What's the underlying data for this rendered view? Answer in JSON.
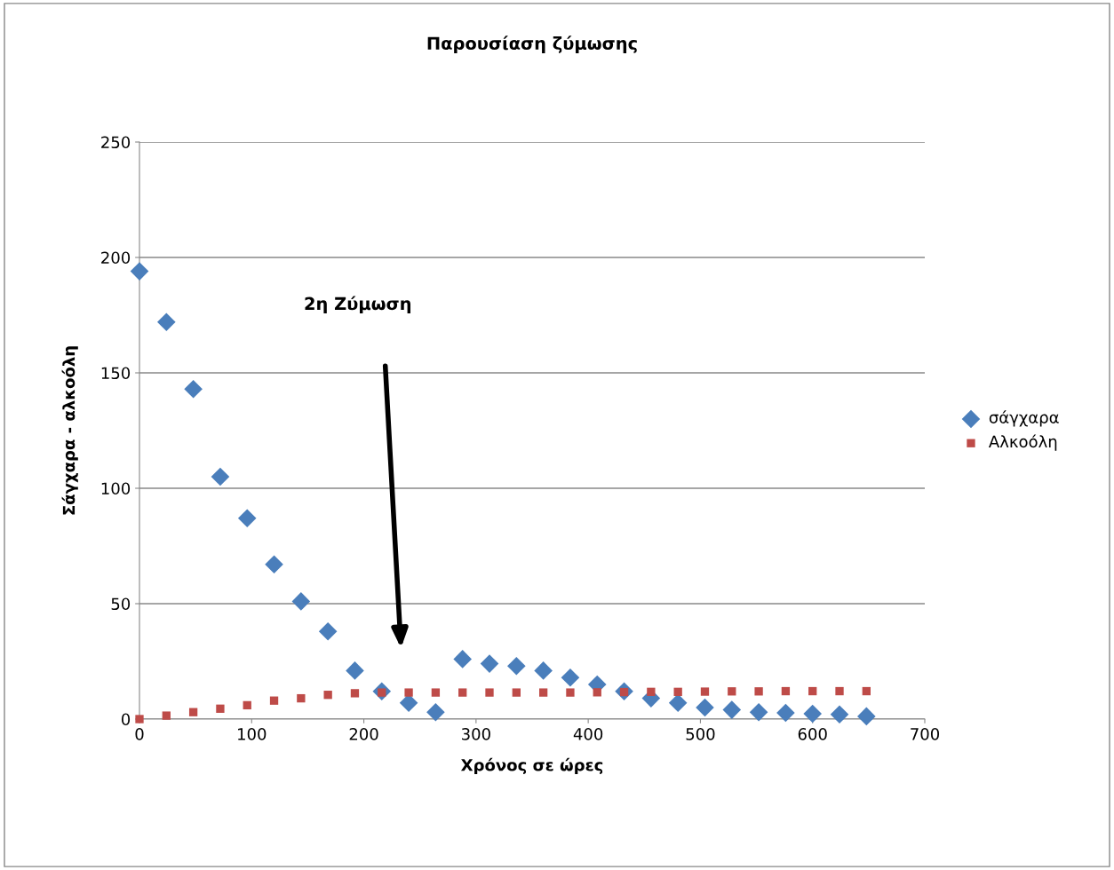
{
  "chart_data": {
    "type": "scatter",
    "title": "Παρουσίαση ζύμωσης",
    "xlabel": "Χρόνος σε ώρες",
    "ylabel": "Σάγχαρα - αλκοόλη",
    "x": [
      0,
      24,
      48,
      72,
      96,
      120,
      144,
      168,
      192,
      216,
      240,
      264,
      288,
      312,
      336,
      360,
      384,
      408,
      432,
      456,
      480,
      504,
      528,
      552,
      576,
      600,
      624,
      648
    ],
    "series": [
      {
        "name": "σάγχαρα",
        "color": "#4a7ebb",
        "marker": "diamond",
        "values": [
          194,
          172,
          143,
          105,
          87,
          67,
          51,
          38,
          21,
          12,
          7,
          3,
          26,
          24,
          23,
          21,
          18,
          15,
          12,
          9,
          7,
          5,
          4,
          3,
          2.7,
          2.3,
          2,
          1.2
        ]
      },
      {
        "name": "Αλκοόλη",
        "color": "#be4b48",
        "marker": "square",
        "values": [
          0,
          1.5,
          3,
          4.5,
          6,
          8,
          9,
          10.5,
          11.2,
          11.5,
          11.5,
          11.5,
          11.5,
          11.5,
          11.5,
          11.5,
          11.5,
          11.6,
          11.7,
          11.8,
          11.8,
          11.9,
          12,
          12,
          12.1,
          12.1,
          12.1,
          12.1
        ]
      }
    ],
    "annotations": [
      "2η Ζύμωση"
    ],
    "xlim": [
      0,
      700
    ],
    "xticks": [
      0,
      100,
      200,
      300,
      400,
      500,
      600,
      700
    ],
    "ylim": [
      0,
      250
    ],
    "yticks": [
      0,
      50,
      100,
      150,
      200,
      250
    ],
    "grid": "y",
    "legend": "right"
  }
}
